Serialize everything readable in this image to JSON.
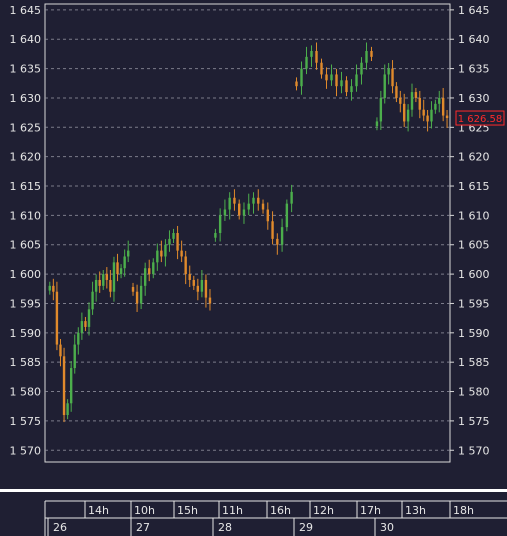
{
  "chart_data": {
    "type": "candlestick",
    "y_ticks": [
      "1 645",
      "1 640",
      "1 635",
      "1 630",
      "1 625",
      "1 620",
      "1 615",
      "1 610",
      "1 605",
      "1 600",
      "1 595",
      "1 590",
      "1 585",
      "1 580",
      "1 575",
      "1 570"
    ],
    "y_values": [
      1645,
      1640,
      1635,
      1630,
      1625,
      1620,
      1615,
      1610,
      1605,
      1600,
      1595,
      1590,
      1585,
      1580,
      1575,
      1570
    ],
    "ylim": [
      1568,
      1646
    ],
    "grid": true,
    "last_price_label": "1 626.58",
    "last_price": 1626.58,
    "time_labels": [
      "14h",
      "10h",
      "15h",
      "11h",
      "16h",
      "12h",
      "17h",
      "13h",
      "18h"
    ],
    "day_labels": [
      "26",
      "27",
      "28",
      "29",
      "30"
    ],
    "series": [
      {
        "segment": 1,
        "day": "26",
        "closes": [
          1598,
          1597,
          1588,
          1586,
          1576,
          1578,
          1584,
          1588,
          1590,
          1592,
          1591,
          1594,
          1597,
          1599,
          1598,
          1600,
          1599,
          1597,
          1602,
          1600,
          1601,
          1603,
          1604
        ]
      },
      {
        "segment": 2,
        "day": "27",
        "closes": [
          1597,
          1595,
          1598,
          1601,
          1600,
          1602,
          1604,
          1603,
          1605,
          1606,
          1607,
          1604,
          1603,
          1600,
          1599,
          1598,
          1597,
          1599,
          1596,
          1595
        ]
      },
      {
        "segment": 3,
        "day": "28",
        "closes": [
          1607,
          1610,
          1611,
          1613,
          1612,
          1610,
          1611,
          1612,
          1613,
          1612,
          1611,
          1609,
          1606,
          1605,
          1608,
          1612,
          1614
        ]
      },
      {
        "segment": 4,
        "day": "29",
        "closes": [
          1632,
          1635,
          1637,
          1638,
          1636,
          1634,
          1633,
          1634,
          1632,
          1633,
          1631,
          1632,
          1634,
          1636,
          1638,
          1637
        ]
      },
      {
        "segment": 5,
        "day": "30",
        "closes": [
          1626,
          1630,
          1634,
          1635,
          1632,
          1630,
          1629,
          1626,
          1628,
          1631,
          1630,
          1628,
          1627,
          1626,
          1628,
          1629,
          1630,
          1627,
          1626.58
        ]
      }
    ],
    "colors": {
      "up": "#4cae4c",
      "down": "#e08a2c",
      "price_box": "#ff2a2a"
    }
  }
}
